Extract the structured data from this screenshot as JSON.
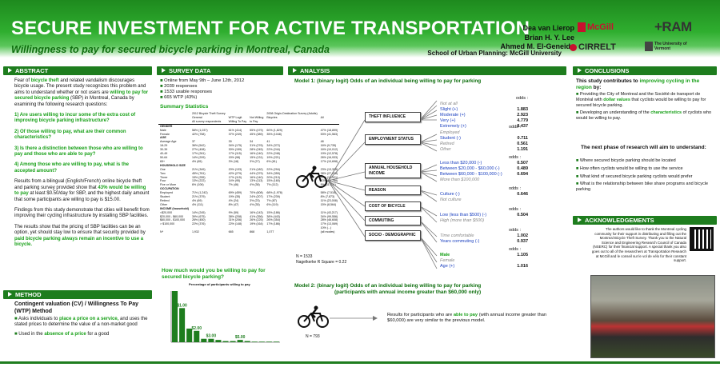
{
  "header": {
    "title": "SECURE INVESTMENT FOR ACTIVE TRANSPORTATION",
    "subtitle": "Willingness to pay for secured bicycle parking in Montreal, Canada",
    "authors": [
      "Dea van Lierop",
      "Brian H. Y. Lee",
      "Ahmed M. El-Geneidy"
    ],
    "school": "School of Urban Planning: McGill University",
    "logos": [
      "McGill",
      "CIRRELT",
      "+RAM",
      "The University of Vermont"
    ]
  },
  "abstract": {
    "heading": "ABSTRACT",
    "p1_a": "Fear of ",
    "p1_b": "bicycle theft",
    "p1_c": " and related vandalism discourages bicycle usage. The present study recognizes this problem and aims to understand whether or not users are ",
    "p1_d": "willing to pay for secured bicycle parking",
    "p1_e": " (SBP) in Montreal, Canada by examining the following research questions:",
    "q1": "1) Are users willing to incur some of the extra cost of improving bicycle parking infrastructure?",
    "q2": "2) Of those willing to pay, what are their common characteristics?",
    "q3": "3) Is there a distinction between those who are willing to pay and those who are able to pay?",
    "q4": "4) Among those who are willing to pay, what is the accepted amount?",
    "p2_a": "Results from a bilingual (English/French) online bicycle theft and parking survey provided show that ",
    "p2_b": "43% would be willing to pay",
    "p2_c": " at least $0.50/day for SBP, and the highest daily amount that some participants are willing to pay is $15.00.",
    "p3": "Findings from this study demonstrate that cities will benefit from improving their cycling infrastructure by installing SBP facilities.",
    "p4_a": "The results show that the pricing of SBP facilities can be an option, yet should stay low to ensure that security provided by ",
    "p4_b": "paid bicycle parking always remain an incentive to use a bicycle."
  },
  "method": {
    "heading": "METHOD",
    "title": "Contingent valuation (CV) / Willingness To Pay (WTP) Method",
    "b1_a": "Asks individuals to ",
    "b1_b": "place a price on a service,",
    "b1_c": " and uses the stated prices to determine the value of a non-market good",
    "b2_a": "Used in the ",
    "b2_b": "absence of a price",
    "b2_c": " for a good"
  },
  "survey": {
    "heading": "SURVEY DATA",
    "bullets": [
      "Online from May 9th – June 12th, 2012",
      "2039 responses",
      "1533 usable responses",
      "665 WTP (43%)"
    ],
    "stats_title": "Summary Statistics",
    "table_rows": [
      [
        "",
        "2012 Bicycle Theft Survey",
        "",
        "",
        "2008 Origin-Destination Survey (Adults)"
      ],
      [
        "",
        "General",
        "WTP Logit",
        "Not Willing",
        "Bicycles",
        "All"
      ],
      [
        "",
        "All survey respondents",
        "Willing To Pay",
        "to Pay",
        "",
        ""
      ],
      [
        "GENDER",
        "",
        "",
        "",
        "",
        ""
      ],
      [
        "Male",
        "58% (1,037)",
        "61% (414)",
        "55% (479)",
        "60% (1,829)",
        "47% (18,899)"
      ],
      [
        "Female",
        "42% (758)",
        "37% (249)",
        "45% (389)",
        "35% (1048)",
        "53% (41,563)"
      ],
      [
        "AGE",
        "",
        "",
        "",
        "",
        ""
      ],
      [
        "Average Age",
        "37",
        "39",
        "34",
        "41",
        "48"
      ],
      [
        "18-29",
        "36% (542)",
        "34% (175)",
        "31% (276)",
        "34% (372)",
        "16% (9,735)"
      ],
      [
        "30-39",
        "27% (408)",
        "30% (159)",
        "28% (245)",
        "22% (244)",
        "16% (10,012)"
      ],
      [
        "40-49",
        "17% (261)",
        "17% (115)",
        "16% (140)",
        "22% (248)",
        "19% (12,578)"
      ],
      [
        "50-64",
        "14% (209)",
        "15% (98)",
        "15% (131)",
        "19% (221)",
        "26% (16,933)"
      ],
      [
        "65+",
        "4% (65)",
        "3% (18)",
        "3% (27)",
        "6% (61)",
        "17% (10,698)"
      ],
      [
        "HOUSEHOLD SIZE",
        "",
        "",
        "",
        "",
        ""
      ],
      [
        "One",
        "21% (349)",
        "20% (133)",
        "21% (182)",
        "22% (294)",
        "23% (13,308)"
      ],
      [
        "Two",
        "45% (761)",
        "42% (279)",
        "44% (379)",
        "34% (359)",
        "38% (27,208)"
      ],
      [
        "Three",
        "15% (255)",
        "17% (115)",
        "16% (140)",
        "20% (210)",
        "17% (10,521)"
      ],
      [
        "Four",
        "13% (222)",
        "14% (95)",
        "13% (113)",
        "15% (160)",
        "13% (13,788)"
      ],
      [
        "Five or More",
        "6% (106)",
        "7% (46)",
        "4% (38)",
        "7% (112)",
        "9% (11,331)"
      ],
      [
        "OCCUPATION",
        "",
        "",
        "",
        "",
        ""
      ],
      [
        "Employed",
        "71% (1,242)",
        "69% (459)",
        "70% (608)",
        "68% (1,978)",
        "58% (7,518)"
      ],
      [
        "Student",
        "21% (379)",
        "19% (35)",
        "24% (207)",
        "17% (239)",
        "8% (7,873)"
      ],
      [
        "Retired",
        "4% (69)",
        "4% (24)",
        "3% (23)",
        "7% (87)",
        "11% (23,008)"
      ],
      [
        "Other",
        "4% (111)",
        "8% (47)",
        "4% (35)",
        "6% (119)",
        "15% (8,564)"
      ],
      [
        "INCOME (household)",
        "",
        "",
        "",
        "",
        ""
      ],
      [
        "<$20,000",
        "14% (245)",
        "9% (59)",
        "16% (143)",
        "15% (186)",
        "11% (43,217)"
      ],
      [
        "$20,000 - $60,000",
        "39% (675)",
        "38% (208)",
        "41% (356)",
        "38% (443)",
        "34% (99,556)"
      ],
      [
        "$60,000 - $100,000",
        "26% (450)",
        "31% (206)",
        "26% (225)",
        "26% (354)",
        "28% (46,608)"
      ],
      [
        "> $100,000",
        "22% (376)",
        "22% (148)",
        "19% (164)",
        "17% (186)",
        "17% (13,069)"
      ],
      [
        "",
        "",
        "",
        "",
        "",
        "10% (...)"
      ],
      [
        "N*",
        "1,932",
        "665",
        "868",
        "1,077",
        "(all modes)"
      ]
    ],
    "chart_question": "How much would you be willing to pay for secured bicycle parking?"
  },
  "chart_data": {
    "type": "bar",
    "title": "Percentage of participants willing to pay",
    "categories": [
      "$0.50",
      "$1.00",
      "$1.50",
      "$2.00",
      "$2.50",
      "$3.00",
      "$3.50",
      "$4.00",
      "$4.50",
      "$5.00",
      "$6.00",
      "$7.00",
      "$8.00",
      "$10.00",
      "$15.00"
    ],
    "values": [
      45,
      30,
      12,
      10,
      3,
      3,
      2,
      1,
      1,
      2,
      1,
      0.5,
      0.5,
      0.5,
      0.5
    ],
    "labels_shown": [
      "$1.00",
      "$2.00",
      "$3.00",
      "$5.00"
    ]
  },
  "analysis": {
    "heading": "ANALYSIS",
    "model1": "Model 1: (binary logit)  Odds of an individual being willing to pay for parking",
    "model2_a": "Model 2: (binary logit)  Odds of an individual being willing to pay for parking",
    "model2_b": "(participants with annual income greater than $60,000 only)",
    "n1": "N = 1533",
    "r2": "Nagelkerke R Square = 0.22",
    "n2": "N = 793",
    "model2_result_a": "Results for participants who are ",
    "model2_result_b": "able to pay",
    "model2_result_c": " (with annual income greater than $60,000) are very similar to the previous model.",
    "nodes": [
      "THEFT INFLUENCE",
      "EMPLOYMENT STATUS",
      "ANNUAL HOUSEHOLD INCOME",
      "REASON",
      "COST OF BICYCLE",
      "COMMUTING",
      "SOCIO - DEMOGRAPHIC"
    ],
    "odds_label": "odds :",
    "theft": [
      [
        "Not at all",
        ""
      ],
      [
        "Slight (+)",
        "1.883"
      ],
      [
        "Moderate (+)",
        "2.923"
      ],
      [
        "Very (+)",
        "4.779"
      ],
      [
        "Extremely (+)",
        "8.437"
      ]
    ],
    "employment": [
      [
        "Employed",
        ""
      ],
      [
        "Student (-)",
        "0.711"
      ],
      [
        "Retired",
        "0.561"
      ],
      [
        "Other",
        "1.191"
      ]
    ],
    "income": [
      [
        "Less than $20,000 (-)",
        "0.507"
      ],
      [
        "Between $20,000 - $60,000 (-)",
        "0.489"
      ],
      [
        "Between $60,000 - $100,000 (-)",
        "0.694"
      ],
      [
        "More than $100,000",
        ""
      ]
    ],
    "reason": [
      [
        "Culture (-)",
        "0.646"
      ],
      [
        "Not culture",
        ""
      ]
    ],
    "cost": [
      [
        "Low (less than $500) (-)",
        "0.504"
      ],
      [
        "High (more than $500)",
        ""
      ]
    ],
    "commuting": [
      [
        "Time comfortable",
        "1.002"
      ],
      [
        "Years commuting (-)",
        "0.937"
      ]
    ],
    "socio": [
      [
        "Male",
        "1.105"
      ],
      [
        "Female",
        ""
      ],
      [
        "Age (+)",
        "1.016"
      ]
    ]
  },
  "conclusions": {
    "heading": "CONCLUSIONS",
    "lead_a": "This study contributes to ",
    "lead_b": "improving cycling in the region",
    "lead_c": " by:",
    "b1_a": "Providing the City of Montreal and the Société de transport de Montréal with ",
    "b1_b": "dollar values",
    "b1_c": " that cyclists would be willing to pay for secured bicycle parking.",
    "b2_a": "Developing an understanding of the ",
    "b2_b": "characteristics",
    "b2_c": " of cyclists who would be willing to pay.",
    "next": "The next phase of research will aim to understand:",
    "items": [
      "Where secured bicycle parking should be located",
      "How often cyclists would be willing to use the service",
      "What kind of secured bicycle parking cyclists would prefer",
      "What is the relationship between bike share programs and bicycle parking"
    ]
  },
  "acknowledgements": {
    "heading": "ACKNOWLEDGEMENTS",
    "text": "The authors would like to thank the Montreal cycling community for their support in distributing and filling out the Montreal Bicycle Theft Survey. Thank you to the Natural Science and Engineering Research Council of Canada (NSERC) for their financial support. A special thank you also goes out to all of the researchers at Transportation Research at McGill and le conseil sur le vol de vélo for their constant support."
  },
  "colors": {
    "green": "#1e7d1e",
    "accent": "#18a018",
    "blue": "#1a3fbf"
  }
}
